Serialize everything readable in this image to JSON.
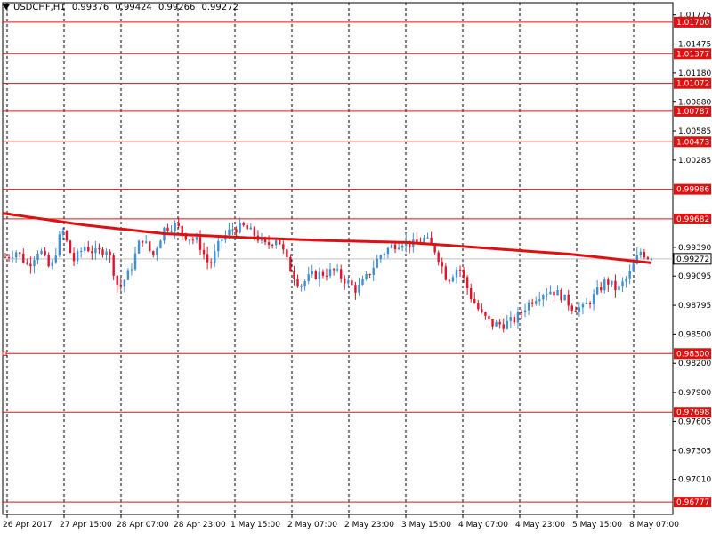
{
  "header": {
    "symbol": "USDCHF,H1",
    "open": "0.99376",
    "high": "0.99424",
    "low": "0.99266",
    "close": "0.99272"
  },
  "colors": {
    "bull": "#3d8fd6",
    "bear": "#e0142a",
    "ma": "#e01010",
    "level": "#e01010",
    "grid": "#000000",
    "price_line": "#c0c0c0"
  },
  "chart_data": {
    "type": "candlestick",
    "ylim": [
      0.9665,
      1.019
    ],
    "y_ticks": [
      "1.01775",
      "1.01475",
      "1.01180",
      "1.00880",
      "1.00585",
      "1.00285",
      "0.99390",
      "0.99095",
      "0.98795",
      "0.98500",
      "0.98200",
      "0.97900",
      "0.97605",
      "0.97305",
      "0.97010"
    ],
    "x_ticks": [
      "26 Apr 2017",
      "27 Apr 15:00",
      "28 Apr 07:00",
      "28 Apr 23:00",
      "1 May 15:00",
      "2 May 07:00",
      "2 May 23:00",
      "3 May 15:00",
      "4 May 07:00",
      "4 May 23:00",
      "5 May 15:00",
      "8 May 07:00"
    ],
    "levels": [
      "1.01700",
      "1.01377",
      "1.01072",
      "1.00787",
      "1.00473",
      "0.99986",
      "0.99682",
      "0.98300",
      "0.97698",
      "0.96777"
    ],
    "current_price": "0.99272",
    "ma_anchors": [
      0.9974,
      0.9962,
      0.9953,
      0.9949,
      0.9946,
      0.9944,
      0.9938,
      0.9932,
      0.9923
    ],
    "close_path": [
      0.9929,
      0.9935,
      0.992,
      0.9938,
      0.9915,
      0.9958,
      0.9925,
      0.994,
      0.9933,
      0.9938,
      0.9896,
      0.9915,
      0.995,
      0.993,
      0.9958,
      0.9962,
      0.995,
      0.9945,
      0.992,
      0.9946,
      0.9958,
      0.996,
      0.9952,
      0.994,
      0.995,
      0.992,
      0.99,
      0.991,
      0.9912,
      0.9915,
      0.9905,
      0.9895,
      0.991,
      0.993,
      0.994,
      0.9945,
      0.9942,
      0.9948,
      0.9935,
      0.9905,
      0.992,
      0.989,
      0.987,
      0.986,
      0.986,
      0.9865,
      0.988,
      0.989,
      0.9895,
      0.989,
      0.9878,
      0.9876,
      0.989,
      0.9905,
      0.9895,
      0.991,
      0.9935,
      0.99272
    ]
  }
}
